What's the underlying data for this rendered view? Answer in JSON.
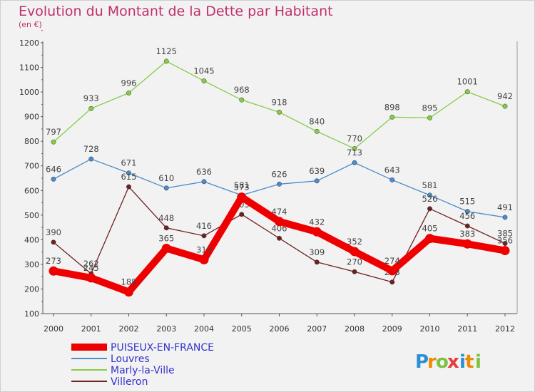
{
  "chart_data": {
    "type": "line",
    "title": "Evolution du Montant de la Dette par Habitant",
    "subtitle": "(en €)",
    "xlabel": "",
    "ylabel": "",
    "ylim": [
      100,
      1200
    ],
    "yticks": [
      100,
      200,
      300,
      400,
      500,
      600,
      700,
      800,
      900,
      1000,
      1100,
      1200
    ],
    "grid": false,
    "legend_position": "bottom-left",
    "categories": [
      "2000",
      "2001",
      "2002",
      "2003",
      "2004",
      "2005",
      "2006",
      "2007",
      "2008",
      "2009",
      "2010",
      "2011",
      "2012"
    ],
    "series": [
      {
        "name": "PUISEUX-EN-FRANCE",
        "color": "#ee0000",
        "values": [
          273,
          245,
          188,
          365,
          319,
          573,
          474,
          432,
          352,
          274,
          405,
          383,
          356
        ],
        "labels": [
          "273",
          "245",
          "188",
          "365",
          "319",
          "573",
          "474",
          "432",
          "352",
          "274",
          "405",
          "383",
          "356"
        ]
      },
      {
        "name": "Louvres",
        "color": "#4a8ccc",
        "values": [
          646,
          728,
          671,
          610,
          636,
          581,
          626,
          639,
          713,
          643,
          581,
          515,
          491
        ],
        "labels": [
          "646",
          "728",
          "671",
          "610",
          "636",
          "581",
          "626",
          "639",
          "713",
          "643",
          "581",
          "515",
          "491"
        ]
      },
      {
        "name": "Marly-la-Ville",
        "color": "#88cc44",
        "values": [
          797,
          933,
          996,
          1125,
          1045,
          968,
          918,
          840,
          770,
          898,
          895,
          1001,
          942
        ],
        "labels": [
          "797",
          "933",
          "996",
          "1125",
          "1045",
          "968",
          "918",
          "840",
          "770",
          "898",
          "895",
          "1001",
          "942"
        ]
      },
      {
        "name": "Villeron",
        "color": "#702020",
        "values": [
          390,
          262,
          615,
          448,
          416,
          503,
          406,
          309,
          270,
          228,
          526,
          456,
          385
        ],
        "labels": [
          "390",
          "262",
          "615",
          "448",
          "416",
          "503",
          "406",
          "309",
          "270",
          "228",
          "526",
          "456",
          "385"
        ]
      }
    ]
  },
  "brand": {
    "letters": [
      "P",
      "r",
      "o",
      "x",
      "i",
      "t",
      "i"
    ],
    "colors": [
      "#2a8fd8",
      "#f08a00",
      "#7cc242",
      "#e63c3c",
      "#2a8fd8",
      "#f08a00",
      "#7cc242"
    ]
  }
}
